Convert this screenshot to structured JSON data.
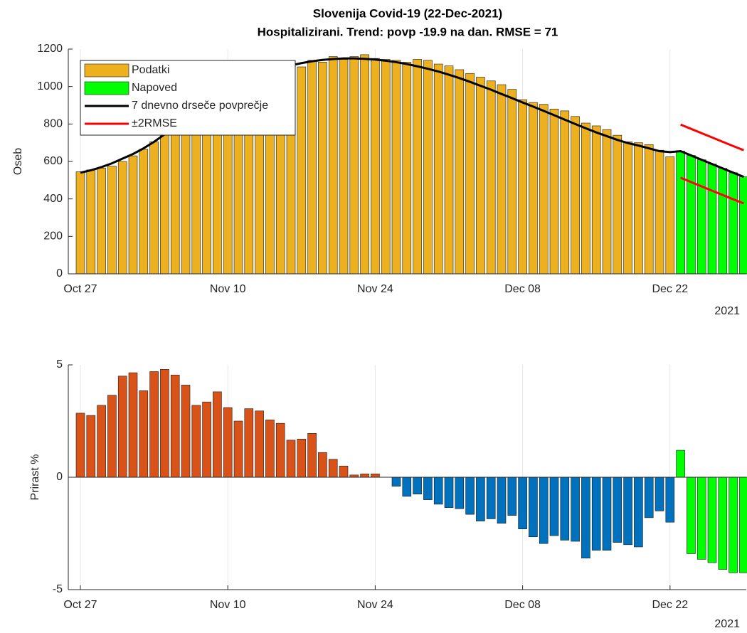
{
  "chart_data": [
    {
      "type": "bar",
      "title": [
        "Slovenija Covid-19 (22-Dec-2021)",
        "Hospitalizirani. Trend: povp -19.9 na dan. RMSE = 71"
      ],
      "ylabel": "Oseb",
      "year_label": "2021",
      "legend": "upper left",
      "grid": true,
      "categories": [
        "Oct 27",
        null,
        null,
        null,
        null,
        null,
        null,
        null,
        null,
        null,
        null,
        null,
        null,
        null,
        "Nov 10",
        null,
        null,
        null,
        null,
        null,
        null,
        null,
        null,
        null,
        null,
        null,
        null,
        null,
        "Nov 24",
        null,
        null,
        null,
        null,
        null,
        null,
        null,
        null,
        null,
        null,
        null,
        null,
        null,
        "Dec 08",
        null,
        null,
        null,
        null,
        null,
        null,
        null,
        null,
        null,
        null,
        null,
        null,
        null,
        "Dec 22",
        null,
        null,
        null,
        null,
        null,
        null,
        null
      ],
      "ylim": [
        0,
        1200
      ],
      "yticks": [
        0,
        200,
        400,
        600,
        800,
        1000,
        1200
      ],
      "series": [
        {
          "name": "Podatki",
          "type": "bar",
          "color": "#edb120",
          "values": [
            545,
            555,
            565,
            575,
            600,
            630,
            665,
            705,
            750,
            800,
            840,
            880,
            920,
            960,
            995,
            1030,
            1055,
            1080,
            1100,
            1110,
            1125,
            1105,
            1140,
            1130,
            1160,
            1145,
            1160,
            1170,
            1150,
            1145,
            1140,
            1130,
            1145,
            1140,
            1120,
            1110,
            1090,
            1070,
            1050,
            1030,
            1010,
            985,
            930,
            915,
            905,
            880,
            870,
            840,
            805,
            790,
            770,
            740,
            705,
            700,
            690,
            660,
            625,
            null,
            null,
            null,
            null,
            null,
            null,
            null
          ]
        },
        {
          "name": "Napoved",
          "type": "bar",
          "color": "#00ff00",
          "values": [
            null,
            null,
            null,
            null,
            null,
            null,
            null,
            null,
            null,
            null,
            null,
            null,
            null,
            null,
            null,
            null,
            null,
            null,
            null,
            null,
            null,
            null,
            null,
            null,
            null,
            null,
            null,
            null,
            null,
            null,
            null,
            null,
            null,
            null,
            null,
            null,
            null,
            null,
            null,
            null,
            null,
            null,
            null,
            null,
            null,
            null,
            null,
            null,
            null,
            null,
            null,
            null,
            null,
            null,
            null,
            null,
            null,
            655,
            632,
            609,
            586,
            563,
            540,
            518
          ]
        },
        {
          "name": "7 dnevno drseče povprečje",
          "type": "line",
          "color": "#000000",
          "values": [
            540,
            553,
            570,
            590,
            615,
            640,
            670,
            705,
            745,
            785,
            825,
            865,
            905,
            945,
            980,
            1015,
            1040,
            1065,
            1085,
            1100,
            1113,
            1125,
            1135,
            1142,
            1147,
            1150,
            1150,
            1148,
            1144,
            1138,
            1130,
            1120,
            1108,
            1095,
            1080,
            1063,
            1045,
            1025,
            1004,
            983,
            960,
            938,
            915,
            893,
            870,
            847,
            823,
            800,
            777,
            755,
            735,
            715,
            698,
            685,
            670,
            655,
            650,
            655,
            632,
            609,
            586,
            563,
            540,
            518
          ]
        },
        {
          "name": "±2RMSE",
          "type": "line",
          "color": "#ff0000",
          "values": [
            null,
            null,
            null,
            null,
            null,
            null,
            null,
            null,
            null,
            null,
            null,
            null,
            null,
            null,
            null,
            null,
            null,
            null,
            null,
            null,
            null,
            null,
            null,
            null,
            null,
            null,
            null,
            null,
            null,
            null,
            null,
            null,
            null,
            null,
            null,
            null,
            null,
            null,
            null,
            null,
            null,
            null,
            null,
            null,
            null,
            null,
            null,
            null,
            null,
            null,
            null,
            null,
            null,
            null,
            null,
            null,
            null,
            797,
            774,
            751,
            728,
            705,
            682,
            660
          ],
          "lower_values": [
            null,
            null,
            null,
            null,
            null,
            null,
            null,
            null,
            null,
            null,
            null,
            null,
            null,
            null,
            null,
            null,
            null,
            null,
            null,
            null,
            null,
            null,
            null,
            null,
            null,
            null,
            null,
            null,
            null,
            null,
            null,
            null,
            null,
            null,
            null,
            null,
            null,
            null,
            null,
            null,
            null,
            null,
            null,
            null,
            null,
            null,
            null,
            null,
            null,
            null,
            null,
            null,
            null,
            null,
            null,
            null,
            null,
            513,
            490,
            467,
            444,
            421,
            398,
            376
          ]
        }
      ]
    },
    {
      "type": "bar",
      "ylabel": "Prirast %",
      "year_label": "2021",
      "grid": true,
      "categories": [
        "Oct 27",
        null,
        null,
        null,
        null,
        null,
        null,
        null,
        null,
        null,
        null,
        null,
        null,
        null,
        "Nov 10",
        null,
        null,
        null,
        null,
        null,
        null,
        null,
        null,
        null,
        null,
        null,
        null,
        null,
        "Nov 24",
        null,
        null,
        null,
        null,
        null,
        null,
        null,
        null,
        null,
        null,
        null,
        null,
        null,
        "Dec 08",
        null,
        null,
        null,
        null,
        null,
        null,
        null,
        null,
        null,
        null,
        null,
        null,
        null,
        "Dec 22",
        null,
        null,
        null,
        null,
        null,
        null,
        null
      ],
      "ylim": [
        -5,
        5
      ],
      "yticks": [
        -5,
        0,
        5
      ],
      "positive_color": "#d95319",
      "negative_color": "#0072bd",
      "values": [
        2.85,
        2.75,
        3.2,
        3.65,
        4.5,
        4.65,
        3.85,
        4.7,
        4.8,
        4.55,
        4.1,
        3.2,
        3.35,
        3.8,
        3.1,
        2.5,
        3.05,
        2.95,
        2.55,
        2.4,
        1.65,
        1.7,
        1.95,
        1.1,
        0.8,
        0.5,
        0.1,
        0.15,
        0.15,
        0,
        -0.4,
        -0.85,
        -0.75,
        -1.0,
        -1.2,
        -1.35,
        -1.4,
        -1.65,
        -1.95,
        -1.85,
        -2.05,
        -1.7,
        -2.3,
        -2.65,
        -2.95,
        -2.6,
        -2.8,
        -2.85,
        -3.6,
        -3.25,
        -3.25,
        -2.9,
        -3.0,
        -3.1,
        -1.8,
        -1.5,
        -2.0,
        null,
        null,
        null,
        null,
        null,
        null,
        null
      ],
      "forecast_color": "#00ff00",
      "forecast_values": [
        null,
        null,
        null,
        null,
        null,
        null,
        null,
        null,
        null,
        null,
        null,
        null,
        null,
        null,
        null,
        null,
        null,
        null,
        null,
        null,
        null,
        null,
        null,
        null,
        null,
        null,
        null,
        null,
        null,
        null,
        null,
        null,
        null,
        null,
        null,
        null,
        null,
        null,
        null,
        null,
        null,
        null,
        null,
        null,
        null,
        null,
        null,
        null,
        null,
        null,
        null,
        null,
        null,
        null,
        null,
        null,
        null,
        1.2,
        -3.4,
        -3.65,
        -3.8,
        -4.1,
        -4.25,
        -4.25
      ]
    }
  ]
}
